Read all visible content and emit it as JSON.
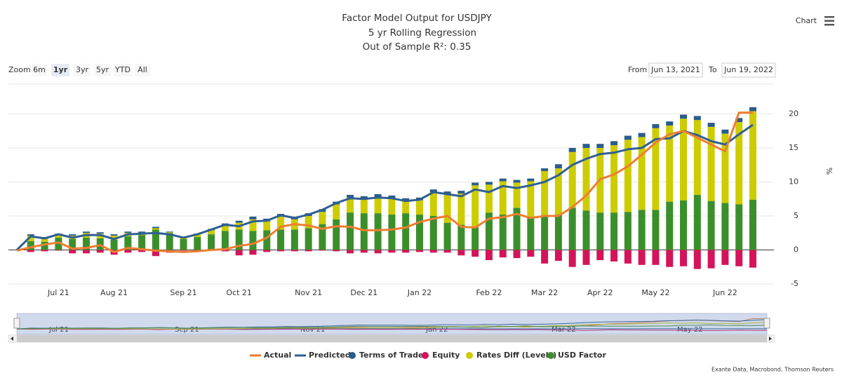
{
  "chart_data": {
    "type": "combo",
    "title": "Factor Model Output for USDJPY",
    "subtitle": "5 yr Rolling Regression",
    "subtitle2": "Out of Sample R²: 0.35",
    "y_label": "%",
    "menu_label": "Chart",
    "credits": "Exante Data, Macrobond, Thomson Reuters",
    "zoom": {
      "label": "Zoom",
      "buttons": [
        {
          "label": "6m",
          "state": "normal"
        },
        {
          "label": "1yr",
          "state": "selected"
        },
        {
          "label": "3yr",
          "state": "disabled"
        },
        {
          "label": "5yr",
          "state": "disabled"
        },
        {
          "label": "YTD",
          "state": "normal"
        },
        {
          "label": "All",
          "state": "disabled"
        }
      ]
    },
    "range": {
      "from_label": "From",
      "from": "Jun 13, 2021",
      "to_label": "To",
      "to": "Jun 19, 2022"
    },
    "navigator_labels": [
      "Jul 21",
      "Sep 21",
      "Nov 21",
      "Jan 22",
      "Mar 22",
      "May 22"
    ],
    "categories": [
      null,
      null,
      null,
      "Jul 21",
      null,
      null,
      null,
      "Aug 21",
      null,
      null,
      null,
      null,
      "Sep 21",
      null,
      null,
      null,
      "Oct 21",
      null,
      null,
      null,
      null,
      "Nov 21",
      null,
      null,
      null,
      "Dec 21",
      null,
      null,
      null,
      "Jan 22",
      null,
      null,
      null,
      null,
      "Feb 22",
      null,
      null,
      null,
      "Mar 22",
      null,
      null,
      null,
      "Apr 22",
      null,
      null,
      null,
      "May 22",
      null,
      null,
      null,
      null,
      "Jun 22",
      null,
      null
    ],
    "ylim": [
      -5,
      25
    ],
    "yticks": [
      -5,
      0,
      5,
      10,
      15,
      20
    ],
    "grid": true,
    "legend": "bottom",
    "series": [
      {
        "name": "Actual",
        "type": "line",
        "color": "#ee7d32",
        "values": [
          -0.1,
          0.4,
          0.8,
          1.1,
          0.2,
          0.3,
          0.7,
          -0.3,
          0.3,
          0.1,
          -0.1,
          -0.2,
          -0.3,
          -0.2,
          0.0,
          0.1,
          0.6,
          0.9,
          1.8,
          3.4,
          3.8,
          3.6,
          3.1,
          3.5,
          3.4,
          2.9,
          2.9,
          3.0,
          3.3,
          4.1,
          4.6,
          5.0,
          3.4,
          3.3,
          4.6,
          4.8,
          5.3,
          4.7,
          5.0,
          5.0,
          6.3,
          8.0,
          10.4,
          11.1,
          12.3,
          14.0,
          15.8,
          17.0,
          17.5,
          16.5,
          15.5,
          14.5,
          20.2,
          20.2
        ]
      },
      {
        "name": "Predicted",
        "type": "line",
        "color": "#2f5f93",
        "values": [
          0,
          2.0,
          1.7,
          2.3,
          1.8,
          2.2,
          2.2,
          1.6,
          2.3,
          2.4,
          2.5,
          2.3,
          1.8,
          2.3,
          3.0,
          3.7,
          3.5,
          4.2,
          4.3,
          5.1,
          4.7,
          5.2,
          5.9,
          6.9,
          7.6,
          7.5,
          7.7,
          7.6,
          7.2,
          7.4,
          8.5,
          8.2,
          7.9,
          8.9,
          8.5,
          9.4,
          9.1,
          9.5,
          10.0,
          11.0,
          12.5,
          13.4,
          14.1,
          14.3,
          14.8,
          15.0,
          16.3,
          16.4,
          17.5,
          16.9,
          16.0,
          15.5,
          17.0,
          18.4
        ]
      },
      {
        "name": "Terms of Trade",
        "type": "bar",
        "color": "#2b5c8a",
        "values": [
          0,
          0.2,
          0.2,
          0.2,
          0.2,
          0.2,
          0.2,
          0.2,
          0.2,
          0.2,
          0.2,
          0.1,
          0.1,
          0.1,
          0.2,
          0.2,
          0.3,
          0.4,
          0.4,
          0.4,
          0.4,
          0.4,
          0.4,
          0.4,
          0.4,
          0.4,
          0.4,
          0.4,
          0.4,
          0.4,
          0.4,
          0.4,
          0.4,
          0.4,
          0.4,
          0.4,
          0.4,
          0.4,
          0.4,
          0.6,
          0.6,
          0.6,
          0.6,
          0.6,
          0.6,
          0.6,
          0.6,
          0.6,
          0.6,
          0.6,
          0.6,
          0.6,
          0.6,
          0.6
        ]
      },
      {
        "name": "Equity",
        "type": "bar",
        "color": "#d4145a",
        "values": [
          0,
          -0.3,
          -0.2,
          -0.1,
          -0.5,
          -0.5,
          -0.4,
          -0.7,
          -0.4,
          -0.3,
          -0.9,
          -0.4,
          -0.1,
          -0.1,
          -0.1,
          -0.2,
          -0.8,
          -0.7,
          -0.3,
          -0.2,
          -0.2,
          -0.2,
          -0.1,
          -0.2,
          -0.5,
          -0.4,
          -0.5,
          -0.4,
          -0.4,
          -0.3,
          -0.4,
          -0.4,
          -0.8,
          -1.0,
          -1.5,
          -1.1,
          -1.2,
          -1.0,
          -2.0,
          -1.6,
          -2.5,
          -2.2,
          -1.5,
          -1.7,
          -2.0,
          -2.2,
          -2.2,
          -2.5,
          -2.4,
          -2.8,
          -2.7,
          -2.2,
          -2.4,
          -2.6
        ]
      },
      {
        "name": "Rates Diff (Levels)",
        "type": "bar",
        "color": "#cccc00",
        "values": [
          0,
          0.8,
          0.5,
          0.4,
          0.5,
          0.7,
          0.7,
          0.6,
          0.5,
          0.3,
          0.2,
          0.1,
          0.2,
          0.4,
          0.6,
          0.9,
          1.0,
          1.7,
          1.3,
          1.9,
          1.5,
          1.8,
          1.8,
          2.2,
          2.2,
          2.1,
          2.4,
          2.4,
          1.8,
          2.1,
          3.5,
          4.2,
          4.6,
          6.2,
          4.1,
          4.9,
          3.7,
          5.3,
          6.6,
          6.8,
          8.2,
          9.2,
          9.5,
          9.9,
          10.6,
          10.7,
          12.0,
          11.2,
          12.0,
          11.0,
          10.9,
          10.2,
          12.1,
          13.0
        ]
      },
      {
        "name": "USD Factor",
        "type": "bar",
        "color": "#3b8f2b",
        "values": [
          0,
          1.3,
          1.2,
          1.8,
          1.6,
          1.8,
          1.7,
          1.5,
          2.0,
          2.2,
          3.0,
          2.5,
          1.6,
          1.9,
          2.3,
          2.8,
          3.0,
          2.8,
          2.9,
          3.0,
          3.0,
          3.2,
          3.8,
          4.5,
          5.5,
          5.4,
          5.4,
          5.2,
          5.4,
          5.2,
          5.0,
          4.0,
          3.7,
          3.3,
          5.5,
          5.2,
          6.2,
          4.8,
          5.0,
          5.2,
          6.2,
          5.8,
          5.5,
          5.5,
          5.6,
          5.9,
          5.9,
          7.1,
          7.3,
          8.1,
          7.2,
          6.9,
          6.7,
          7.4
        ]
      }
    ]
  }
}
